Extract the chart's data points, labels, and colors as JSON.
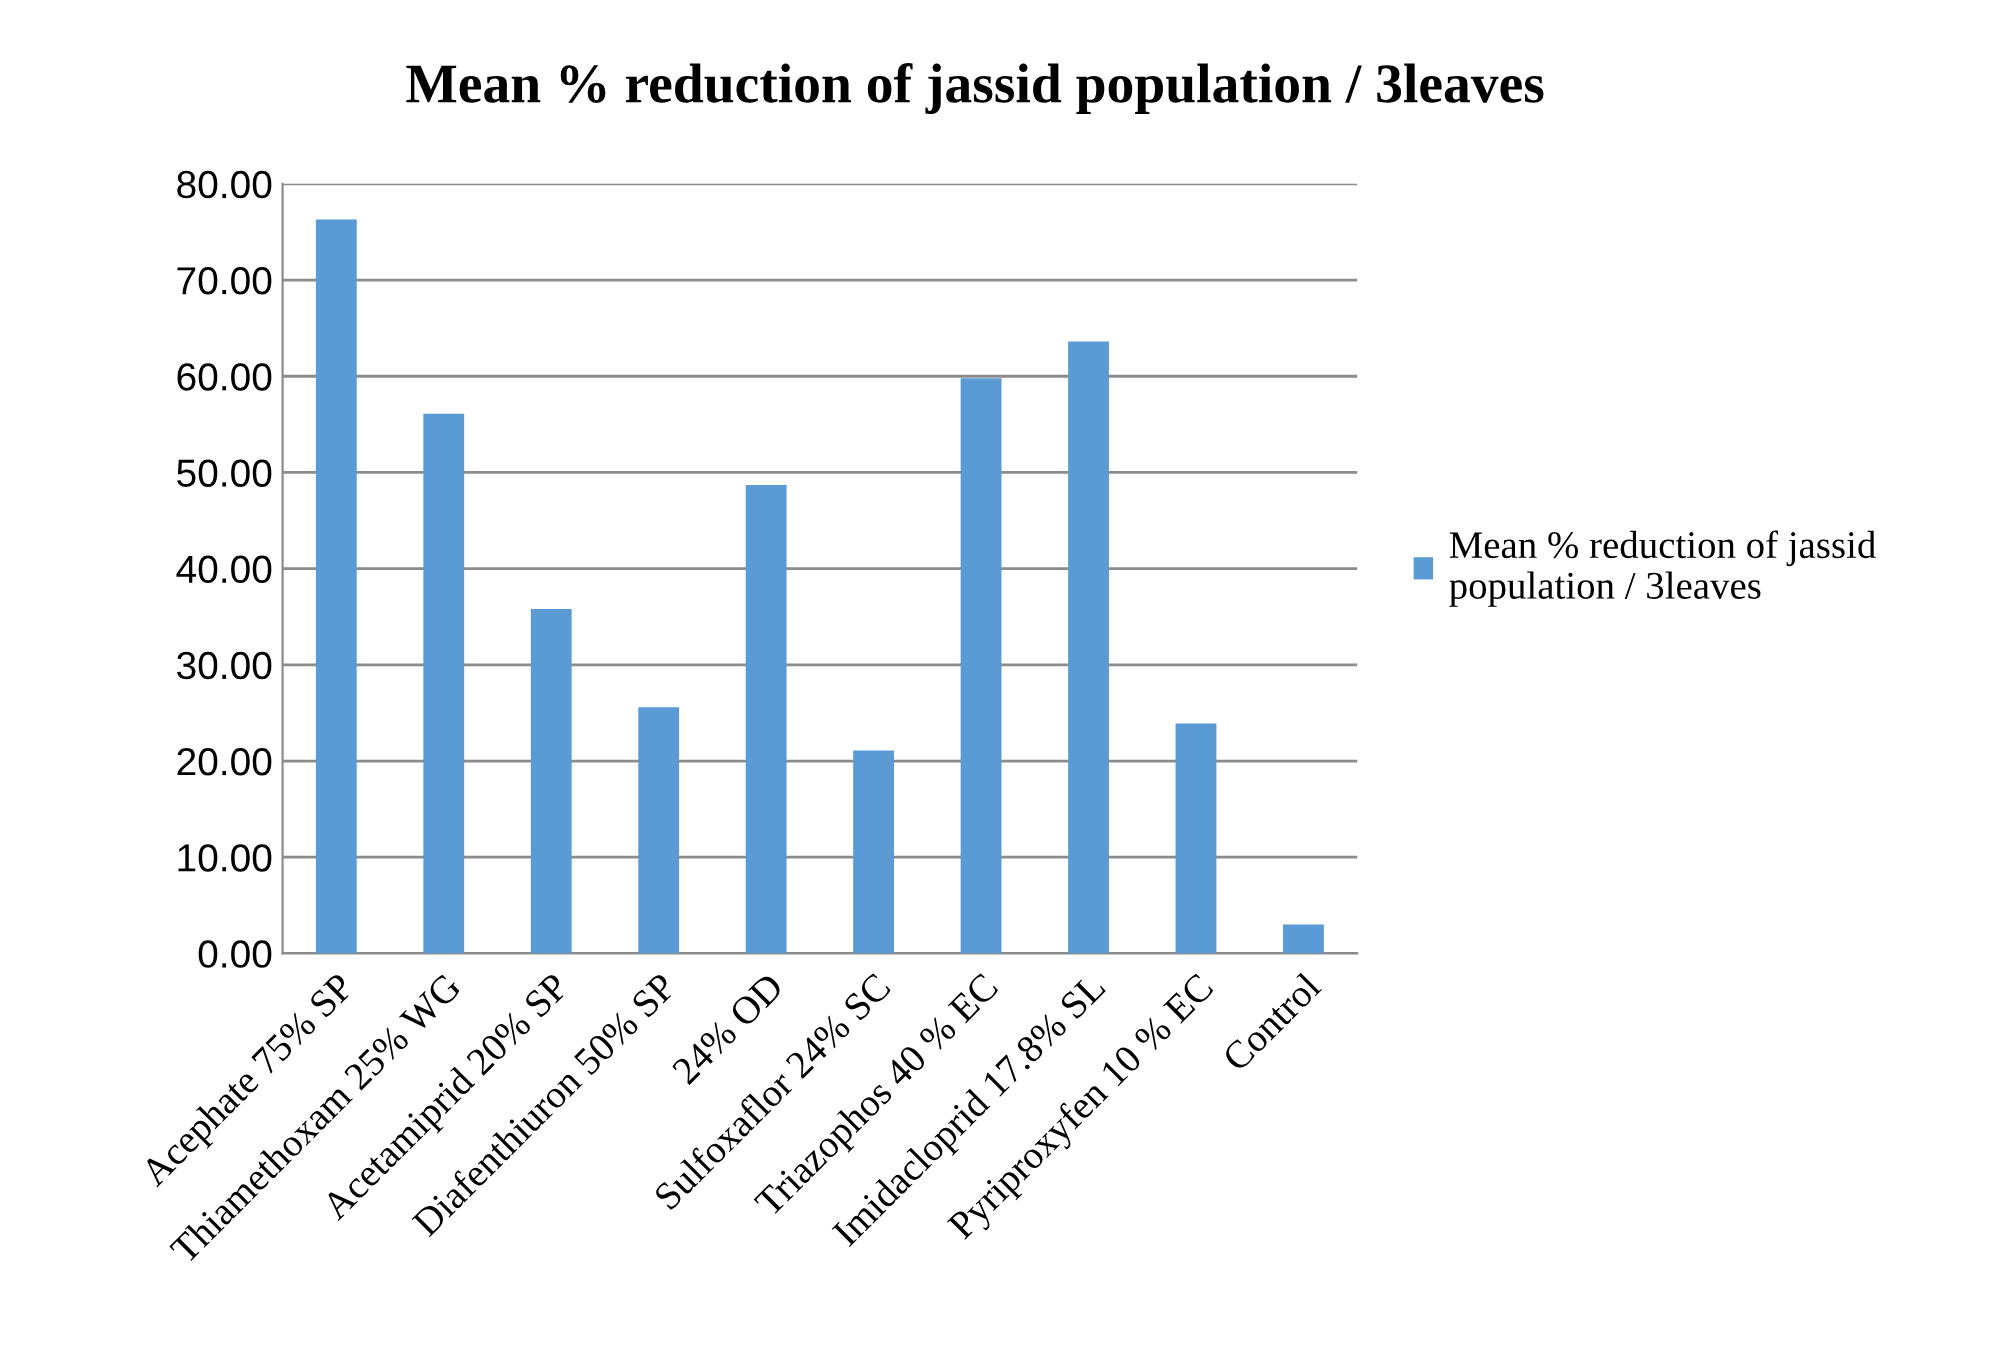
{
  "chart_data": {
    "type": "bar",
    "title": "Mean % reduction of jassid population / 3leaves",
    "categories": [
      "Acephate 75% SP",
      "Thiamethoxam 25% WG",
      "Acetamiprid 20% SP",
      "Diafenthiuron 50% SP",
      "24% OD",
      "Sulfoxaflor 24% SC",
      "Triazophos 40 % EC",
      "Imidacloprid 17.8% SL",
      "Pyriproxyfen 10 % EC",
      "Control"
    ],
    "series": [
      {
        "name": "Mean % reduction of jassid population / 3leaves",
        "color": "#5b9bd5",
        "values": [
          76.3,
          56.1,
          35.8,
          25.6,
          48.7,
          21.1,
          59.8,
          63.6,
          23.9,
          3.0
        ]
      }
    ],
    "ylim": [
      0,
      80
    ],
    "yticks": [
      {
        "value": 0,
        "label": "0.00"
      },
      {
        "value": 10,
        "label": "10.00"
      },
      {
        "value": 20,
        "label": "20.00"
      },
      {
        "value": 30,
        "label": "30.00"
      },
      {
        "value": 40,
        "label": "40.00"
      },
      {
        "value": 50,
        "label": "50.00"
      },
      {
        "value": 60,
        "label": "60.00"
      },
      {
        "value": 70,
        "label": "70.00"
      },
      {
        "value": 80,
        "label": "80.00"
      }
    ],
    "grid": "y",
    "legend": "right"
  }
}
